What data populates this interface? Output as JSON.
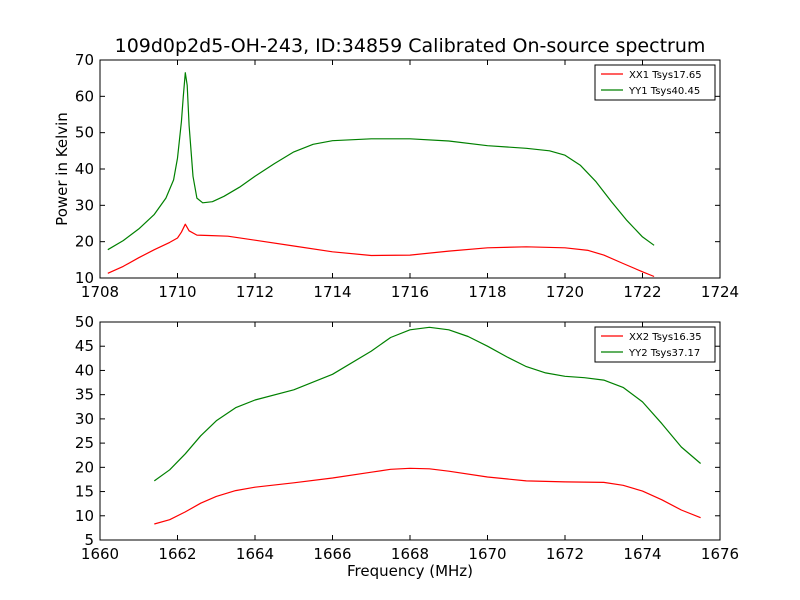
{
  "figure_title": "109d0p2d5-OH-243, ID:34859 Calibrated On-source spectrum",
  "colors": {
    "xx": "#ff0000",
    "yy": "#008000",
    "axes": "#000000",
    "background": "#ffffff"
  },
  "chart_data": [
    {
      "type": "line",
      "title": "",
      "xlabel": "",
      "ylabel": "Power in Kelvin",
      "xlim": [
        1708,
        1724
      ],
      "ylim": [
        10,
        70
      ],
      "xticks": [
        1708,
        1710,
        1712,
        1714,
        1716,
        1718,
        1720,
        1722,
        1724
      ],
      "yticks": [
        10,
        20,
        30,
        40,
        50,
        60,
        70
      ],
      "grid": false,
      "legend_position": "top-right",
      "series": [
        {
          "name": "XX1 Tsys17.65",
          "color": "#ff0000",
          "points": [
            [
              1708.2,
              11.3
            ],
            [
              1708.6,
              13.2
            ],
            [
              1709.0,
              15.6
            ],
            [
              1709.4,
              17.8
            ],
            [
              1709.8,
              19.8
            ],
            [
              1710.0,
              21.0
            ],
            [
              1710.1,
              22.6
            ],
            [
              1710.2,
              24.8
            ],
            [
              1710.3,
              23.0
            ],
            [
              1710.5,
              21.8
            ],
            [
              1710.8,
              21.7
            ],
            [
              1711.3,
              21.5
            ],
            [
              1712.0,
              20.4
            ],
            [
              1713.0,
              18.8
            ],
            [
              1714.0,
              17.2
            ],
            [
              1715.0,
              16.2
            ],
            [
              1716.0,
              16.3
            ],
            [
              1717.0,
              17.4
            ],
            [
              1718.0,
              18.3
            ],
            [
              1719.0,
              18.6
            ],
            [
              1720.0,
              18.3
            ],
            [
              1720.6,
              17.6
            ],
            [
              1721.0,
              16.3
            ],
            [
              1721.5,
              14.0
            ],
            [
              1722.0,
              11.7
            ],
            [
              1722.3,
              10.4
            ]
          ]
        },
        {
          "name": "YY1 Tsys40.45",
          "color": "#008000",
          "points": [
            [
              1708.2,
              17.8
            ],
            [
              1708.6,
              20.3
            ],
            [
              1709.0,
              23.5
            ],
            [
              1709.4,
              27.5
            ],
            [
              1709.7,
              32.0
            ],
            [
              1709.9,
              37.0
            ],
            [
              1710.0,
              43.0
            ],
            [
              1710.1,
              53.0
            ],
            [
              1710.15,
              60.0
            ],
            [
              1710.2,
              66.5
            ],
            [
              1710.25,
              63.0
            ],
            [
              1710.3,
              52.0
            ],
            [
              1710.4,
              38.0
            ],
            [
              1710.5,
              32.0
            ],
            [
              1710.65,
              30.7
            ],
            [
              1710.9,
              31.0
            ],
            [
              1711.2,
              32.5
            ],
            [
              1711.6,
              35.0
            ],
            [
              1712.0,
              38.0
            ],
            [
              1712.5,
              41.5
            ],
            [
              1713.0,
              44.7
            ],
            [
              1713.5,
              46.8
            ],
            [
              1714.0,
              47.8
            ],
            [
              1715.0,
              48.3
            ],
            [
              1716.0,
              48.3
            ],
            [
              1717.0,
              47.7
            ],
            [
              1718.0,
              46.4
            ],
            [
              1719.0,
              45.7
            ],
            [
              1719.6,
              45.0
            ],
            [
              1720.0,
              43.8
            ],
            [
              1720.4,
              41.0
            ],
            [
              1720.8,
              36.5
            ],
            [
              1721.2,
              31.0
            ],
            [
              1721.6,
              25.8
            ],
            [
              1722.0,
              21.3
            ],
            [
              1722.3,
              19.0
            ]
          ]
        }
      ]
    },
    {
      "type": "line",
      "title": "",
      "xlabel": "Frequency (MHz)",
      "ylabel": "",
      "xlim": [
        1660,
        1676
      ],
      "ylim": [
        5,
        50
      ],
      "xticks": [
        1660,
        1662,
        1664,
        1666,
        1668,
        1670,
        1672,
        1674,
        1676
      ],
      "yticks": [
        5,
        10,
        15,
        20,
        25,
        30,
        35,
        40,
        45,
        50
      ],
      "grid": false,
      "legend_position": "top-right",
      "series": [
        {
          "name": "XX2 Tsys16.35",
          "color": "#ff0000",
          "points": [
            [
              1661.4,
              8.3
            ],
            [
              1661.8,
              9.2
            ],
            [
              1662.2,
              10.8
            ],
            [
              1662.6,
              12.6
            ],
            [
              1663.0,
              14.0
            ],
            [
              1663.5,
              15.2
            ],
            [
              1664.0,
              15.9
            ],
            [
              1665.0,
              16.8
            ],
            [
              1666.0,
              17.8
            ],
            [
              1667.0,
              19.0
            ],
            [
              1667.5,
              19.6
            ],
            [
              1668.0,
              19.8
            ],
            [
              1668.5,
              19.7
            ],
            [
              1669.0,
              19.2
            ],
            [
              1670.0,
              18.0
            ],
            [
              1671.0,
              17.2
            ],
            [
              1672.0,
              17.0
            ],
            [
              1673.0,
              16.9
            ],
            [
              1673.5,
              16.3
            ],
            [
              1674.0,
              15.1
            ],
            [
              1674.5,
              13.3
            ],
            [
              1675.0,
              11.2
            ],
            [
              1675.5,
              9.6
            ]
          ]
        },
        {
          "name": "YY2 Tsys37.17",
          "color": "#008000",
          "points": [
            [
              1661.4,
              17.2
            ],
            [
              1661.8,
              19.5
            ],
            [
              1662.2,
              22.8
            ],
            [
              1662.6,
              26.5
            ],
            [
              1663.0,
              29.6
            ],
            [
              1663.5,
              32.3
            ],
            [
              1664.0,
              33.9
            ],
            [
              1665.0,
              36.0
            ],
            [
              1666.0,
              39.2
            ],
            [
              1667.0,
              44.0
            ],
            [
              1667.5,
              46.8
            ],
            [
              1668.0,
              48.4
            ],
            [
              1668.5,
              48.9
            ],
            [
              1669.0,
              48.4
            ],
            [
              1669.5,
              47.0
            ],
            [
              1670.0,
              45.0
            ],
            [
              1670.5,
              42.8
            ],
            [
              1671.0,
              40.8
            ],
            [
              1671.5,
              39.5
            ],
            [
              1672.0,
              38.8
            ],
            [
              1672.5,
              38.5
            ],
            [
              1673.0,
              38.0
            ],
            [
              1673.5,
              36.5
            ],
            [
              1674.0,
              33.5
            ],
            [
              1674.5,
              29.0
            ],
            [
              1675.0,
              24.2
            ],
            [
              1675.5,
              20.8
            ]
          ]
        }
      ]
    }
  ]
}
